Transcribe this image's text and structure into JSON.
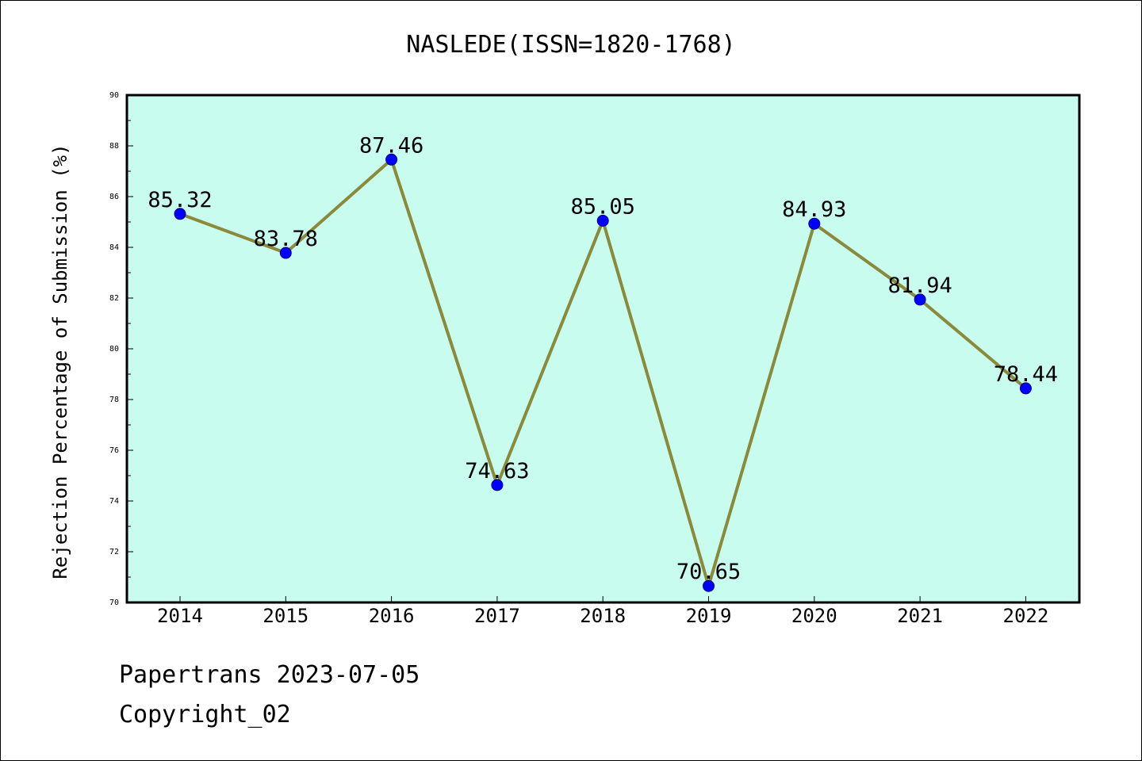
{
  "chart_data": {
    "type": "line",
    "title": "NASLEDE(ISSN=1820-1768)",
    "xlabel": "",
    "ylabel": "Rejection Percentage of Submission (%)",
    "categories": [
      "2014",
      "2015",
      "2016",
      "2017",
      "2018",
      "2019",
      "2020",
      "2021",
      "2022"
    ],
    "series": [
      {
        "values": [
          85.32,
          83.78,
          87.46,
          74.63,
          85.05,
          70.65,
          84.93,
          81.94,
          78.44
        ],
        "data_labels": [
          "85.32",
          "83.78",
          "87.46",
          "74.63",
          "85.05",
          "70.65",
          "84.93",
          "81.94",
          "78.44"
        ]
      }
    ],
    "ylim": [
      70,
      90
    ],
    "yticks": [
      "70",
      "72",
      "74",
      "76",
      "78",
      "80",
      "82",
      "84",
      "86",
      "88",
      "90"
    ],
    "grid": false,
    "legend": "none",
    "colors": {
      "plot_background": "#c8fcee",
      "line": "#8b8a3a",
      "marker": "#0000ff"
    }
  },
  "footer": {
    "line1": "Papertrans 2023-07-05",
    "line2": "Copyright_02"
  }
}
